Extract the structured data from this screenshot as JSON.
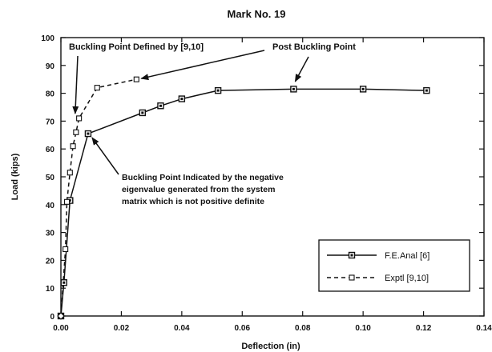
{
  "chart_data": {
    "type": "line",
    "title": "Mark  No.  19",
    "xlabel": "Deflection  (in)",
    "ylabel": "Load  (kips)",
    "xlim": [
      0,
      0.14
    ],
    "ylim": [
      0,
      100
    ],
    "x_ticks": [
      0.0,
      0.02,
      0.04,
      0.06,
      0.08,
      0.1,
      0.12,
      0.14
    ],
    "x_tick_labels": [
      "0.00",
      "0.02",
      "0.04",
      "0.06",
      "0.08",
      "0.10",
      "0.12",
      "0.14"
    ],
    "y_ticks": [
      0,
      10,
      20,
      30,
      40,
      50,
      60,
      70,
      80,
      90,
      100
    ],
    "y_tick_labels": [
      "0",
      "10",
      "20",
      "30",
      "40",
      "50",
      "60",
      "70",
      "80",
      "90",
      "100"
    ],
    "grid": false,
    "legend_position": "bottom-right",
    "series": [
      {
        "name": "F.E.Anal [6]",
        "line_style": "solid",
        "marker": "filled-square",
        "color": "#111111",
        "points": [
          [
            0.0,
            0.0
          ],
          [
            0.001,
            12.0
          ],
          [
            0.003,
            41.5
          ],
          [
            0.009,
            65.5
          ],
          [
            0.027,
            73.0
          ],
          [
            0.033,
            75.5
          ],
          [
            0.04,
            78.0
          ],
          [
            0.052,
            81.0
          ],
          [
            0.077,
            81.5
          ],
          [
            0.1,
            81.5
          ],
          [
            0.121,
            81.0
          ]
        ]
      },
      {
        "name": "Exptl [9,10]",
        "line_style": "dashed",
        "marker": "open-square",
        "color": "#111111",
        "points": [
          [
            0.0,
            0.0
          ],
          [
            0.0015,
            24.0
          ],
          [
            0.002,
            41.0
          ],
          [
            0.003,
            51.5
          ],
          [
            0.004,
            61.0
          ],
          [
            0.005,
            66.0
          ],
          [
            0.006,
            71.0
          ],
          [
            0.012,
            82.0
          ],
          [
            0.025,
            85.0
          ]
        ]
      }
    ],
    "annotations": [
      {
        "text": "Buckling Point Defined by [9,10]",
        "arrow_to": [
          0.005,
          71.0
        ]
      },
      {
        "text": "Post Buckling Point",
        "arrow_to": [
          0.025,
          85.0
        ],
        "second_arrow_to": [
          0.077,
          82.5
        ]
      },
      {
        "text_lines": [
          "Buckling Point Indicated by the negative",
          "eigenvalue generated from the system",
          "matrix which is not positive definite"
        ],
        "arrow_to": [
          0.009,
          65.5
        ]
      }
    ]
  }
}
